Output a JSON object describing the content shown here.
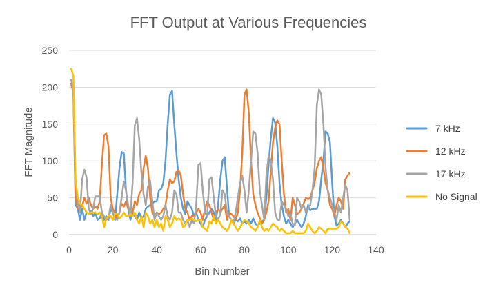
{
  "chart_data": {
    "type": "line",
    "title": "FFT Output at Various Frequencies",
    "xlabel": "Bin Number",
    "ylabel": "FFT Magnitude",
    "xlim": [
      0,
      140
    ],
    "ylim": [
      0,
      250
    ],
    "xticks": [
      0,
      20,
      40,
      60,
      80,
      100,
      120,
      140
    ],
    "yticks": [
      0,
      50,
      100,
      150,
      200,
      250
    ],
    "grid": "horizontal",
    "legend_position": "right",
    "series": [
      {
        "name": "7 kHz",
        "color": "#5b9bd5",
        "x": [
          1,
          2,
          3,
          4,
          5,
          6,
          7,
          8,
          9,
          10,
          11,
          12,
          13,
          14,
          15,
          16,
          17,
          18,
          19,
          20,
          21,
          22,
          23,
          24,
          25,
          26,
          27,
          28,
          29,
          30,
          31,
          32,
          33,
          34,
          35,
          36,
          37,
          38,
          39,
          40,
          41,
          42,
          43,
          44,
          45,
          46,
          47,
          48,
          49,
          50,
          51,
          52,
          53,
          54,
          55,
          56,
          57,
          58,
          59,
          60,
          61,
          62,
          63,
          64,
          65,
          66,
          67,
          68,
          69,
          70,
          71,
          72,
          73,
          74,
          75,
          76,
          77,
          78,
          79,
          80,
          81,
          82,
          83,
          84,
          85,
          86,
          87,
          88,
          89,
          90,
          91,
          92,
          93,
          94,
          95,
          96,
          97,
          98,
          99,
          100,
          101,
          102,
          103,
          104,
          105,
          106,
          107,
          108,
          109,
          110,
          111,
          112,
          113,
          114,
          115,
          116,
          117,
          118,
          119,
          120,
          121,
          122,
          123,
          124,
          125,
          126,
          127,
          128
        ],
        "y": [
          205,
          192,
          40,
          35,
          20,
          35,
          20,
          30,
          28,
          32,
          25,
          30,
          20,
          22,
          30,
          20,
          25,
          20,
          35,
          30,
          20,
          55,
          90,
          112,
          110,
          60,
          35,
          20,
          30,
          25,
          20,
          30,
          22,
          25,
          35,
          38,
          40,
          42,
          45,
          45,
          60,
          62,
          70,
          100,
          150,
          190,
          195,
          150,
          110,
          75,
          50,
          35,
          28,
          45,
          40,
          35,
          25,
          30,
          20,
          15,
          10,
          20,
          25,
          30,
          35,
          30,
          20,
          40,
          75,
          100,
          105,
          65,
          25,
          20,
          15,
          20,
          18,
          22,
          15,
          18,
          15,
          20,
          15,
          22,
          15,
          12,
          15,
          18,
          20,
          50,
          95,
          130,
          158,
          152,
          120,
          70,
          40,
          25,
          15,
          20,
          15,
          10,
          15,
          20,
          15,
          10,
          15,
          25,
          40,
          33,
          35,
          35,
          35,
          45,
          75,
          100,
          140,
          137,
          125,
          70,
          25,
          12,
          15,
          20,
          15,
          10,
          15,
          18
        ]
      },
      {
        "name": "12 kHz",
        "color": "#ed7d31",
        "x": [
          1,
          2,
          3,
          4,
          5,
          6,
          7,
          8,
          9,
          10,
          11,
          12,
          13,
          14,
          15,
          16,
          17,
          18,
          19,
          20,
          21,
          22,
          23,
          24,
          25,
          26,
          27,
          28,
          29,
          30,
          31,
          32,
          33,
          34,
          35,
          36,
          37,
          38,
          39,
          40,
          41,
          42,
          43,
          44,
          45,
          46,
          47,
          48,
          49,
          50,
          51,
          52,
          53,
          54,
          55,
          56,
          57,
          58,
          59,
          60,
          61,
          62,
          63,
          64,
          65,
          66,
          67,
          68,
          69,
          70,
          71,
          72,
          73,
          74,
          75,
          76,
          77,
          78,
          79,
          80,
          81,
          82,
          83,
          84,
          85,
          86,
          87,
          88,
          89,
          90,
          91,
          92,
          93,
          94,
          95,
          96,
          97,
          98,
          99,
          100,
          101,
          102,
          103,
          104,
          105,
          106,
          107,
          108,
          109,
          110,
          111,
          112,
          113,
          114,
          115,
          116,
          117,
          118,
          119,
          120,
          121,
          122,
          123,
          124,
          125,
          126,
          127,
          128
        ],
        "y": [
          205,
          195,
          48,
          35,
          40,
          38,
          50,
          42,
          50,
          40,
          35,
          38,
          35,
          45,
          95,
          135,
          137,
          120,
          50,
          35,
          30,
          20,
          30,
          42,
          38,
          45,
          35,
          32,
          30,
          45,
          40,
          55,
          60,
          90,
          107,
          90,
          50,
          30,
          25,
          30,
          28,
          30,
          35,
          40,
          60,
          75,
          70,
          72,
          85,
          87,
          80,
          55,
          35,
          30,
          20,
          25,
          25,
          30,
          35,
          30,
          20,
          35,
          45,
          40,
          30,
          20,
          30,
          35,
          30,
          35,
          40,
          20,
          30,
          28,
          25,
          20,
          30,
          60,
          110,
          190,
          197,
          165,
          100,
          55,
          40,
          30,
          22,
          15,
          20,
          30,
          45,
          85,
          125,
          145,
          155,
          150,
          100,
          55,
          30,
          35,
          20,
          50,
          40,
          28,
          30,
          35,
          42,
          50,
          48,
          50,
          60,
          70,
          90,
          100,
          105,
          90,
          70,
          60,
          40,
          35,
          25,
          40,
          50,
          45,
          35,
          75,
          80,
          84
        ]
      },
      {
        "name": "17 kHz",
        "color": "#a5a5a5",
        "x": [
          1,
          2,
          3,
          4,
          5,
          6,
          7,
          8,
          9,
          10,
          11,
          12,
          13,
          14,
          15,
          16,
          17,
          18,
          19,
          20,
          21,
          22,
          23,
          24,
          25,
          26,
          27,
          28,
          29,
          30,
          31,
          32,
          33,
          34,
          35,
          36,
          37,
          38,
          39,
          40,
          41,
          42,
          43,
          44,
          45,
          46,
          47,
          48,
          49,
          50,
          51,
          52,
          53,
          54,
          55,
          56,
          57,
          58,
          59,
          60,
          61,
          62,
          63,
          64,
          65,
          66,
          67,
          68,
          69,
          70,
          71,
          72,
          73,
          74,
          75,
          76,
          77,
          78,
          79,
          80,
          81,
          82,
          83,
          84,
          85,
          86,
          87,
          88,
          89,
          90,
          91,
          92,
          93,
          94,
          95,
          96,
          97,
          98,
          99,
          100,
          101,
          102,
          103,
          104,
          105,
          106,
          107,
          108,
          109,
          110,
          111,
          112,
          113,
          114,
          115,
          116,
          117,
          118,
          119,
          120,
          121,
          122,
          123,
          124,
          125,
          126,
          127,
          128
        ],
        "y": [
          210,
          198,
          70,
          42,
          30,
          75,
          88,
          78,
          35,
          28,
          35,
          52,
          52,
          52,
          30,
          25,
          20,
          22,
          40,
          30,
          22,
          20,
          30,
          50,
          72,
          60,
          40,
          25,
          70,
          148,
          158,
          130,
          85,
          55,
          40,
          65,
          73,
          45,
          20,
          30,
          25,
          20,
          25,
          40,
          25,
          20,
          30,
          60,
          55,
          30,
          30,
          20,
          15,
          20,
          10,
          20,
          15,
          40,
          95,
          97,
          60,
          30,
          25,
          75,
          78,
          50,
          25,
          20,
          28,
          60,
          55,
          30,
          25,
          20,
          15,
          30,
          50,
          70,
          80,
          60,
          30,
          60,
          100,
          140,
          137,
          110,
          60,
          40,
          20,
          80,
          107,
          100,
          75,
          30,
          20,
          20,
          45,
          40,
          35,
          25,
          28,
          15,
          12,
          50,
          45,
          35,
          40,
          30,
          35,
          40,
          60,
          90,
          175,
          197,
          190,
          150,
          90,
          60,
          50,
          40,
          30,
          20,
          40,
          30,
          50,
          68,
          60,
          20
        ]
      },
      {
        "name": "No Signal",
        "color": "#ffc000",
        "x": [
          1,
          2,
          3,
          4,
          5,
          6,
          7,
          8,
          9,
          10,
          11,
          12,
          13,
          14,
          15,
          16,
          17,
          18,
          19,
          20,
          21,
          22,
          23,
          24,
          25,
          26,
          27,
          28,
          29,
          30,
          31,
          32,
          33,
          34,
          35,
          36,
          37,
          38,
          39,
          40,
          41,
          42,
          43,
          44,
          45,
          46,
          47,
          48,
          49,
          50,
          51,
          52,
          53,
          54,
          55,
          56,
          57,
          58,
          59,
          60,
          61,
          62,
          63,
          64,
          65,
          66,
          67,
          68,
          69,
          70,
          71,
          72,
          73,
          74,
          75,
          76,
          77,
          78,
          79,
          80,
          81,
          82,
          83,
          84,
          85,
          86,
          87,
          88,
          89,
          90,
          91,
          92,
          93,
          94,
          95,
          96,
          97,
          98,
          99,
          100,
          101,
          102,
          103,
          104,
          105,
          106,
          107,
          108,
          109,
          110,
          111,
          112,
          113,
          114,
          115,
          116,
          117,
          118,
          119,
          120,
          121,
          122,
          123,
          124,
          125,
          126,
          127,
          128
        ],
        "y": [
          225,
          215,
          75,
          50,
          42,
          40,
          35,
          30,
          28,
          30,
          30,
          30,
          28,
          30,
          25,
          10,
          22,
          25,
          25,
          20,
          28,
          28,
          22,
          25,
          30,
          25,
          25,
          28,
          25,
          30,
          20,
          15,
          25,
          10,
          30,
          25,
          15,
          20,
          10,
          20,
          10,
          15,
          5,
          25,
          20,
          10,
          15,
          25,
          20,
          22,
          20,
          10,
          12,
          20,
          20,
          22,
          20,
          18,
          20,
          20,
          10,
          8,
          5,
          18,
          15,
          25,
          15,
          20,
          15,
          10,
          8,
          5,
          10,
          20,
          15,
          10,
          5,
          10,
          15,
          20,
          18,
          15,
          10,
          8,
          5,
          10,
          20,
          10,
          5,
          8,
          5,
          10,
          15,
          12,
          10,
          5,
          8,
          5,
          2,
          2,
          2,
          5,
          2,
          2,
          2,
          2,
          2,
          5,
          15,
          10,
          5,
          2,
          5,
          10,
          8,
          5,
          2,
          8,
          8,
          8,
          8,
          8,
          10,
          18,
          15,
          10,
          8,
          2
        ]
      }
    ]
  }
}
